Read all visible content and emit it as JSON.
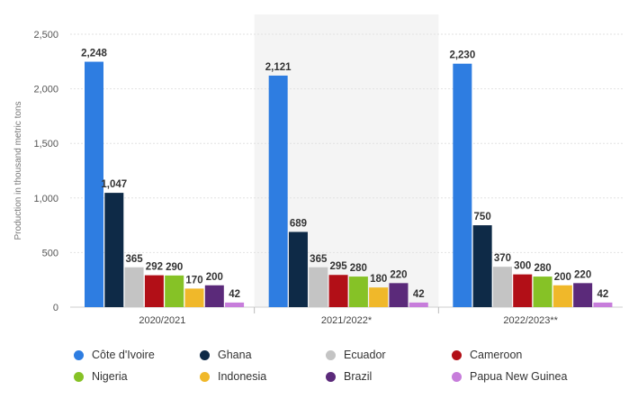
{
  "chart_data": {
    "type": "bar",
    "title": "",
    "xlabel": "",
    "ylabel": "Production in thousand metric tons",
    "ylim": [
      0,
      2500
    ],
    "yticks": [
      0,
      500,
      1000,
      1500,
      2000,
      2500
    ],
    "ytick_labels": [
      "0",
      "500",
      "1,000",
      "1,500",
      "2,000",
      "2,500"
    ],
    "grid": true,
    "legend_position": "bottom",
    "categories": [
      "2020/2021",
      "2021/2022*",
      "2022/2023**"
    ],
    "series": [
      {
        "name": "Côte d'Ivoire",
        "color": "#2e7de1",
        "values": [
          2248,
          2121,
          2230
        ],
        "labels": [
          "2,248",
          "2,121",
          "2,230"
        ]
      },
      {
        "name": "Ghana",
        "color": "#0e2a47",
        "values": [
          1047,
          689,
          750
        ],
        "labels": [
          "1,047",
          "689",
          "750"
        ]
      },
      {
        "name": "Ecuador",
        "color": "#c4c4c4",
        "values": [
          365,
          365,
          370
        ],
        "labels": [
          "365",
          "365",
          "370"
        ]
      },
      {
        "name": "Cameroon",
        "color": "#b20f17",
        "values": [
          292,
          295,
          300
        ],
        "labels": [
          "292",
          "295",
          "300"
        ]
      },
      {
        "name": "Nigeria",
        "color": "#86c226",
        "values": [
          290,
          280,
          280
        ],
        "labels": [
          "290",
          "280",
          "280"
        ]
      },
      {
        "name": "Indonesia",
        "color": "#f0b82a",
        "values": [
          170,
          180,
          200
        ],
        "labels": [
          "170",
          "180",
          "200"
        ]
      },
      {
        "name": "Brazil",
        "color": "#5b2a7a",
        "values": [
          200,
          220,
          220
        ],
        "labels": [
          "200",
          "220",
          "220"
        ]
      },
      {
        "name": "Papua New Guinea",
        "color": "#c77ddb",
        "values": [
          42,
          42,
          42
        ],
        "labels": [
          "42",
          "42",
          "42"
        ]
      }
    ]
  }
}
